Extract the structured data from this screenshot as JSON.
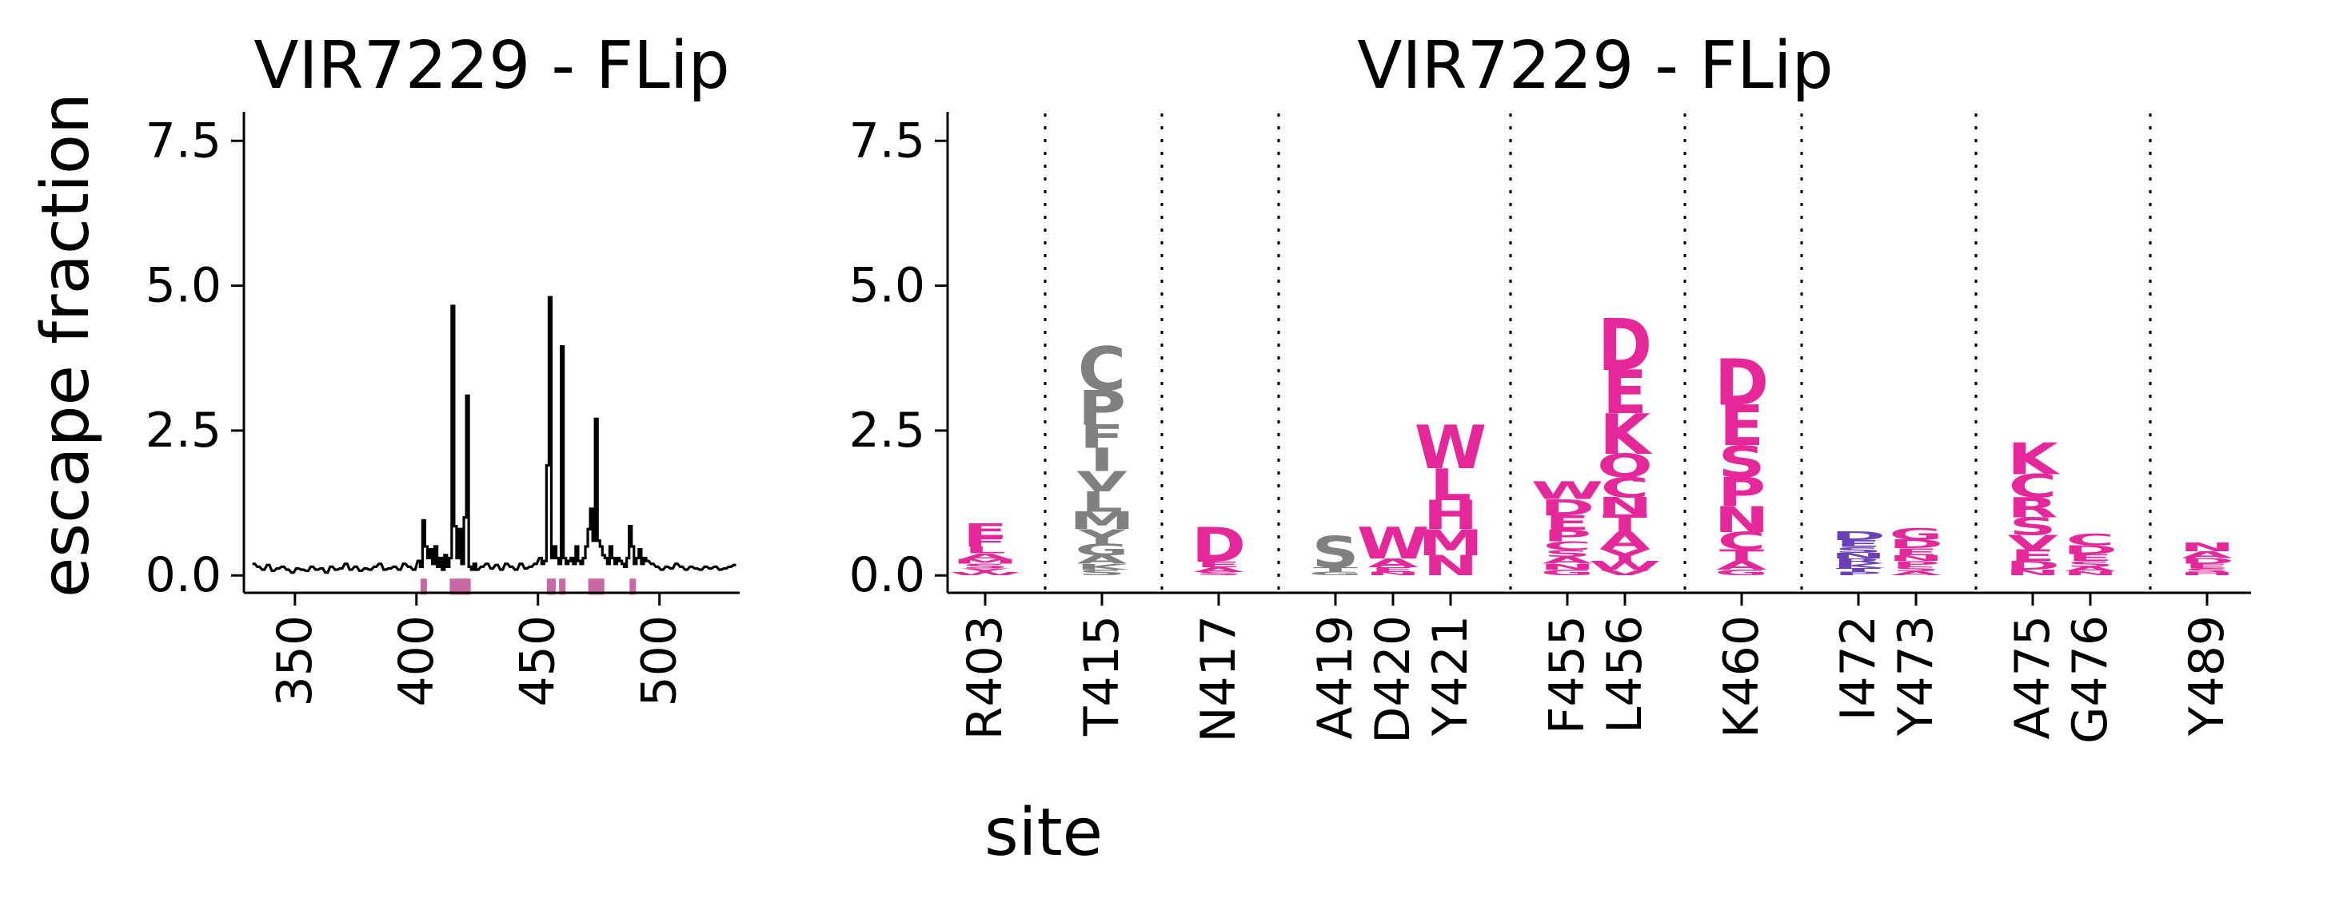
{
  "figure": {
    "ylabel": "escape fraction",
    "xlabel": "site",
    "colors": {
      "line": "#000000",
      "highlight": "#c869a2",
      "magenta": "#e6279a",
      "gray": "#808080",
      "purple": "#6a3fb7"
    }
  },
  "chart_data": [
    {
      "type": "line",
      "title": "VIR7229 - FLip",
      "xlim": [
        329,
        533
      ],
      "ylim": [
        -0.3,
        8.0
      ],
      "xticks": [
        350,
        400,
        450,
        500
      ],
      "yticks": [
        0.0,
        2.5,
        5.0,
        7.5
      ],
      "ytick_labels": [
        "0.0",
        "2.5",
        "5.0",
        "7.5"
      ],
      "line_series": {
        "name": "site escape",
        "x": [
          333,
          335,
          337,
          339,
          341,
          343,
          345,
          347,
          349,
          351,
          353,
          355,
          357,
          359,
          361,
          363,
          365,
          367,
          369,
          371,
          373,
          375,
          377,
          379,
          381,
          383,
          385,
          387,
          389,
          391,
          393,
          395,
          397,
          399,
          401,
          402,
          403,
          404,
          405,
          406,
          407,
          408,
          409,
          410,
          411,
          412,
          413,
          414,
          415,
          416,
          417,
          418,
          419,
          420,
          421,
          422,
          423,
          424,
          425,
          427,
          429,
          431,
          433,
          435,
          437,
          439,
          441,
          443,
          445,
          447,
          449,
          451,
          452,
          453,
          454,
          455,
          456,
          457,
          458,
          459,
          460,
          461,
          462,
          463,
          464,
          465,
          466,
          467,
          468,
          469,
          470,
          471,
          472,
          473,
          474,
          475,
          476,
          477,
          478,
          479,
          480,
          481,
          482,
          483,
          484,
          485,
          486,
          487,
          488,
          489,
          490,
          491,
          492,
          493,
          494,
          495,
          497,
          499,
          501,
          503,
          505,
          507,
          509,
          511,
          513,
          515,
          517,
          519,
          521,
          523,
          525,
          527,
          529,
          531
        ],
        "y": [
          0.2,
          0.15,
          0.1,
          0.18,
          0.08,
          0.12,
          0.15,
          0.1,
          0.05,
          0.12,
          0.1,
          0.08,
          0.15,
          0.1,
          0.12,
          0.05,
          0.15,
          0.1,
          0.12,
          0.2,
          0.1,
          0.15,
          0.08,
          0.12,
          0.1,
          0.15,
          0.2,
          0.1,
          0.12,
          0.15,
          0.1,
          0.2,
          0.15,
          0.1,
          0.25,
          0.15,
          0.95,
          0.5,
          0.3,
          0.45,
          0.2,
          0.5,
          0.15,
          0.3,
          0.1,
          0.35,
          0.15,
          0.3,
          4.65,
          0.85,
          0.3,
          0.8,
          0.2,
          1.0,
          3.1,
          0.15,
          0.1,
          0.2,
          0.1,
          0.15,
          0.2,
          0.12,
          0.18,
          0.1,
          0.2,
          0.15,
          0.1,
          0.2,
          0.12,
          0.15,
          0.2,
          0.3,
          0.2,
          0.25,
          1.9,
          4.8,
          0.3,
          0.5,
          0.3,
          0.2,
          3.95,
          0.3,
          0.2,
          0.25,
          0.3,
          0.2,
          0.5,
          0.25,
          0.2,
          0.3,
          0.5,
          0.8,
          1.15,
          0.6,
          2.7,
          0.6,
          0.5,
          0.35,
          0.3,
          0.2,
          0.5,
          0.3,
          0.2,
          0.3,
          0.25,
          0.2,
          0.15,
          0.3,
          0.85,
          0.5,
          0.2,
          0.3,
          0.45,
          0.2,
          0.3,
          0.25,
          0.2,
          0.15,
          0.1,
          0.15,
          0.12,
          0.2,
          0.15,
          0.1,
          0.15,
          0.12,
          0.1,
          0.15,
          0.12,
          0.15,
          0.1,
          0.12,
          0.15,
          0.18
        ]
      },
      "highlight_sites": [
        403,
        415,
        417,
        419,
        420,
        421,
        455,
        456,
        460,
        472,
        473,
        475,
        476,
        489
      ]
    },
    {
      "type": "logo",
      "title": "VIR7229 - FLip",
      "ylim": [
        -0.3,
        8.0
      ],
      "yticks": [
        0.0,
        2.5,
        5.0,
        7.5
      ],
      "ytick_labels": [
        "0.0",
        "2.5",
        "5.0",
        "7.5"
      ],
      "groups": [
        [
          {
            "site": "R403",
            "color": "magenta",
            "letters": [
              [
                "E",
                0.25
              ],
              [
                "F",
                0.15
              ],
              [
                "L",
                0.12
              ],
              [
                "A",
                0.1
              ],
              [
                "S",
                0.08
              ],
              [
                "M",
                0.08
              ],
              [
                "Y",
                0.07
              ],
              [
                "W",
                0.05
              ]
            ]
          }
        ],
        [
          {
            "site": "T415",
            "color": "gray",
            "letters": [
              [
                "C",
                0.75
              ],
              [
                "P",
                0.6
              ],
              [
                "I",
                0.4
              ],
              [
                "F",
                0.4
              ],
              [
                "L",
                0.35
              ],
              [
                "V",
                0.35
              ],
              [
                "M",
                0.3
              ],
              [
                "Y",
                0.25
              ],
              [
                "G",
                0.2
              ],
              [
                "A",
                0.15
              ],
              [
                "S",
                0.1
              ],
              [
                "K",
                0.1
              ]
            ]
          }
        ],
        [
          {
            "site": "N417",
            "color": "magenta",
            "letters": [
              [
                "D",
                0.6
              ],
              [
                "E",
                0.1
              ],
              [
                "A",
                0.08
              ],
              [
                "S",
                0.06
              ]
            ]
          }
        ],
        [
          {
            "site": "A419",
            "color": "gray",
            "letters": [
              [
                "S",
                0.55
              ],
              [
                "T",
                0.08
              ],
              [
                "G",
                0.06
              ]
            ]
          },
          {
            "site": "D420",
            "color": "magenta",
            "letters": [
              [
                "W",
                0.55
              ],
              [
                "A",
                0.15
              ],
              [
                "E",
                0.08
              ],
              [
                "N",
                0.06
              ]
            ]
          },
          {
            "site": "Y421",
            "color": "magenta",
            "letters": [
              [
                "W",
                0.75
              ],
              [
                "L",
                0.55
              ],
              [
                "H",
                0.5
              ],
              [
                "M",
                0.45
              ],
              [
                "N",
                0.35
              ]
            ]
          }
        ],
        [
          {
            "site": "F455",
            "color": "magenta",
            "letters": [
              [
                "W",
                0.3
              ],
              [
                "D",
                0.28
              ],
              [
                "E",
                0.25
              ],
              [
                "P",
                0.2
              ],
              [
                "C",
                0.15
              ],
              [
                "A",
                0.12
              ],
              [
                "S",
                0.12
              ],
              [
                "G",
                0.1
              ],
              [
                "N",
                0.1
              ]
            ]
          },
          {
            "site": "L456",
            "color": "magenta",
            "letters": [
              [
                "D",
                0.9
              ],
              [
                "E",
                0.75
              ],
              [
                "K",
                0.7
              ],
              [
                "Q",
                0.4
              ],
              [
                "C",
                0.35
              ],
              [
                "A",
                0.3
              ],
              [
                "T",
                0.3
              ],
              [
                "N",
                0.3
              ],
              [
                "Y",
                0.2
              ],
              [
                "W",
                0.15
              ],
              [
                "V",
                0.1
              ]
            ]
          }
        ],
        [
          {
            "site": "K460",
            "color": "magenta",
            "letters": [
              [
                "D",
                0.8
              ],
              [
                "E",
                0.7
              ],
              [
                "S",
                0.55
              ],
              [
                "P",
                0.5
              ],
              [
                "N",
                0.45
              ],
              [
                "C",
                0.3
              ],
              [
                "T",
                0.2
              ],
              [
                "A",
                0.15
              ],
              [
                "G",
                0.1
              ]
            ]
          }
        ],
        [
          {
            "site": "I472",
            "color": "purple",
            "letters": [
              [
                "D",
                0.15
              ],
              [
                "E",
                0.12
              ],
              [
                "N",
                0.1
              ],
              [
                "S",
                0.1
              ],
              [
                "K",
                0.08
              ],
              [
                "R",
                0.08
              ],
              [
                "T",
                0.07
              ],
              [
                "P",
                0.06
              ]
            ]
          },
          {
            "site": "Y473",
            "color": "magenta",
            "letters": [
              [
                "G",
                0.2
              ],
              [
                "D",
                0.15
              ],
              [
                "E",
                0.12
              ],
              [
                "P",
                0.1
              ],
              [
                "N",
                0.1
              ],
              [
                "S",
                0.08
              ],
              [
                "A",
                0.07
              ]
            ]
          }
        ],
        [
          {
            "site": "A475",
            "color": "magenta",
            "letters": [
              [
                "K",
                0.55
              ],
              [
                "C",
                0.4
              ],
              [
                "R",
                0.35
              ],
              [
                "S",
                0.3
              ],
              [
                "V",
                0.25
              ],
              [
                "E",
                0.2
              ],
              [
                "D",
                0.15
              ],
              [
                "N",
                0.1
              ]
            ]
          },
          {
            "site": "G476",
            "color": "magenta",
            "letters": [
              [
                "C",
                0.2
              ],
              [
                "D",
                0.15
              ],
              [
                "E",
                0.12
              ],
              [
                "S",
                0.1
              ],
              [
                "A",
                0.08
              ],
              [
                "N",
                0.07
              ]
            ]
          }
        ],
        [
          {
            "site": "Y489",
            "color": "magenta",
            "letters": [
              [
                "N",
                0.15
              ],
              [
                "A",
                0.12
              ],
              [
                "D",
                0.1
              ],
              [
                "E",
                0.08
              ],
              [
                "S",
                0.07
              ],
              [
                "H",
                0.05
              ]
            ]
          }
        ]
      ]
    }
  ]
}
